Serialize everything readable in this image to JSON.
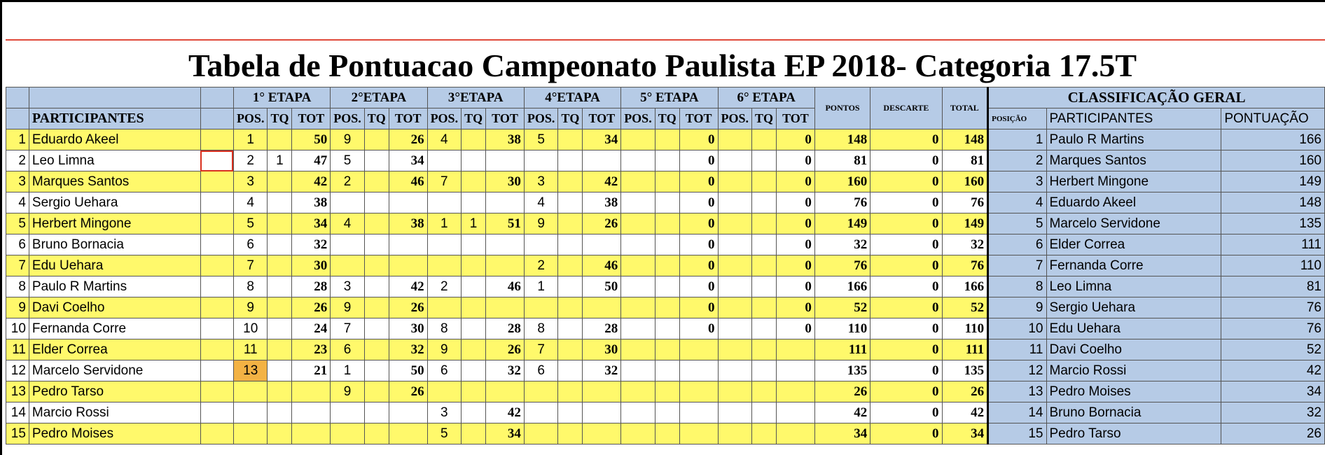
{
  "title": "Tabela de Pontuacao Campeonato Paulista EP 2018- Categoria 17.5T",
  "header": {
    "participants": "PARTICIPANTES",
    "stages": [
      "1° ETAPA",
      "2°ETAPA",
      "3°ETAPA",
      "4°ETAPA",
      "5° ETAPA",
      "6° ETAPA"
    ],
    "sub": [
      "POS.",
      "TQ",
      "TOT"
    ],
    "pontos": "PONTOS",
    "descarte": "DESCARTE",
    "total": "TOTAL",
    "classificacao": "CLASSIFICAÇÃO GERAL",
    "posicao": "POSIÇÃO",
    "participantes2": "PARTICIPANTES",
    "pontuacao": "PONTUAÇÃO"
  },
  "rows": [
    {
      "n": "1",
      "name": "Eduardo Akeel",
      "s": [
        [
          "1",
          "",
          "50"
        ],
        [
          "9",
          "",
          "26"
        ],
        [
          "4",
          "",
          "38"
        ],
        [
          "5",
          "",
          "34"
        ],
        [
          "",
          "",
          "0"
        ],
        [
          "",
          "",
          "0"
        ]
      ],
      "pontos": "148",
      "descarte": "0",
      "total": "148"
    },
    {
      "n": "2",
      "name": "Leo Limna",
      "s": [
        [
          "2",
          "1",
          "47"
        ],
        [
          "5",
          "",
          "34"
        ],
        [
          "",
          "",
          ""
        ],
        [
          "",
          "",
          ""
        ],
        [
          "",
          "",
          "0"
        ],
        [
          "",
          "",
          "0"
        ]
      ],
      "pontos": "81",
      "descarte": "0",
      "total": "81"
    },
    {
      "n": "3",
      "name": "Marques Santos",
      "s": [
        [
          "3",
          "",
          "42"
        ],
        [
          "2",
          "",
          "46"
        ],
        [
          "7",
          "",
          "30"
        ],
        [
          "3",
          "",
          "42"
        ],
        [
          "",
          "",
          "0"
        ],
        [
          "",
          "",
          "0"
        ]
      ],
      "pontos": "160",
      "descarte": "0",
      "total": "160"
    },
    {
      "n": "4",
      "name": "Sergio Uehara",
      "s": [
        [
          "4",
          "",
          "38"
        ],
        [
          "",
          "",
          ""
        ],
        [
          "",
          "",
          ""
        ],
        [
          "4",
          "",
          "38"
        ],
        [
          "",
          "",
          "0"
        ],
        [
          "",
          "",
          "0"
        ]
      ],
      "pontos": "76",
      "descarte": "0",
      "total": "76"
    },
    {
      "n": "5",
      "name": "Herbert Mingone",
      "s": [
        [
          "5",
          "",
          "34"
        ],
        [
          "4",
          "",
          "38"
        ],
        [
          "1",
          "1",
          "51"
        ],
        [
          "9",
          "",
          "26"
        ],
        [
          "",
          "",
          "0"
        ],
        [
          "",
          "",
          "0"
        ]
      ],
      "pontos": "149",
      "descarte": "0",
      "total": "149"
    },
    {
      "n": "6",
      "name": "Bruno Bornacia",
      "s": [
        [
          "6",
          "",
          "32"
        ],
        [
          "",
          "",
          ""
        ],
        [
          "",
          "",
          ""
        ],
        [
          "",
          "",
          ""
        ],
        [
          "",
          "",
          "0"
        ],
        [
          "",
          "",
          "0"
        ]
      ],
      "pontos": "32",
      "descarte": "0",
      "total": "32"
    },
    {
      "n": "7",
      "name": "Edu Uehara",
      "s": [
        [
          "7",
          "",
          "30"
        ],
        [
          "",
          "",
          ""
        ],
        [
          "",
          "",
          ""
        ],
        [
          "2",
          "",
          "46"
        ],
        [
          "",
          "",
          "0"
        ],
        [
          "",
          "",
          "0"
        ]
      ],
      "pontos": "76",
      "descarte": "0",
      "total": "76"
    },
    {
      "n": "8",
      "name": "Paulo R Martins",
      "s": [
        [
          "8",
          "",
          "28"
        ],
        [
          "3",
          "",
          "42"
        ],
        [
          "2",
          "",
          "46"
        ],
        [
          "1",
          "",
          "50"
        ],
        [
          "",
          "",
          "0"
        ],
        [
          "",
          "",
          "0"
        ]
      ],
      "pontos": "166",
      "descarte": "0",
      "total": "166"
    },
    {
      "n": "9",
      "name": "Davi Coelho",
      "s": [
        [
          "9",
          "",
          "26"
        ],
        [
          "9",
          "",
          "26"
        ],
        [
          "",
          "",
          ""
        ],
        [
          "",
          "",
          ""
        ],
        [
          "",
          "",
          "0"
        ],
        [
          "",
          "",
          "0"
        ]
      ],
      "pontos": "52",
      "descarte": "0",
      "total": "52"
    },
    {
      "n": "10",
      "name": "Fernanda Corre",
      "s": [
        [
          "10",
          "",
          "24"
        ],
        [
          "7",
          "",
          "30"
        ],
        [
          "8",
          "",
          "28"
        ],
        [
          "8",
          "",
          "28"
        ],
        [
          "",
          "",
          "0"
        ],
        [
          "",
          "",
          "0"
        ]
      ],
      "pontos": "110",
      "descarte": "0",
      "total": "110"
    },
    {
      "n": "11",
      "name": "Elder Correa",
      "s": [
        [
          "11",
          "",
          "23"
        ],
        [
          "6",
          "",
          "32"
        ],
        [
          "9",
          "",
          "26"
        ],
        [
          "7",
          "",
          "30"
        ],
        [
          "",
          "",
          ""
        ],
        [
          "",
          "",
          ""
        ]
      ],
      "pontos": "111",
      "descarte": "0",
      "total": "111"
    },
    {
      "n": "12",
      "name": "Marcelo Servidone",
      "s": [
        [
          "13",
          "",
          "21"
        ],
        [
          "1",
          "",
          "50"
        ],
        [
          "6",
          "",
          "32"
        ],
        [
          "6",
          "",
          "32"
        ],
        [
          "",
          "",
          ""
        ],
        [
          "",
          "",
          ""
        ]
      ],
      "pontos": "135",
      "descarte": "0",
      "total": "135"
    },
    {
      "n": "13",
      "name": "Pedro Tarso",
      "s": [
        [
          "",
          "",
          ""
        ],
        [
          "9",
          "",
          "26"
        ],
        [
          "",
          "",
          ""
        ],
        [
          "",
          "",
          ""
        ],
        [
          "",
          "",
          ""
        ],
        [
          "",
          "",
          ""
        ]
      ],
      "pontos": "26",
      "descarte": "0",
      "total": "26"
    },
    {
      "n": "14",
      "name": "Marcio Rossi",
      "s": [
        [
          "",
          "",
          ""
        ],
        [
          "",
          "",
          ""
        ],
        [
          "3",
          "",
          "42"
        ],
        [
          "",
          "",
          ""
        ],
        [
          "",
          "",
          ""
        ],
        [
          "",
          "",
          ""
        ]
      ],
      "pontos": "42",
      "descarte": "0",
      "total": "42"
    },
    {
      "n": "15",
      "name": "Pedro Moises",
      "s": [
        [
          "",
          "",
          ""
        ],
        [
          "",
          "",
          ""
        ],
        [
          "5",
          "",
          "34"
        ],
        [
          "",
          "",
          ""
        ],
        [
          "",
          "",
          ""
        ],
        [
          "",
          "",
          ""
        ]
      ],
      "pontos": "34",
      "descarte": "0",
      "total": "34"
    }
  ],
  "classification": [
    {
      "pos": "1",
      "name": "Paulo R Martins",
      "pts": "166"
    },
    {
      "pos": "2",
      "name": "Marques Santos",
      "pts": "160"
    },
    {
      "pos": "3",
      "name": "Herbert Mingone",
      "pts": "149"
    },
    {
      "pos": "4",
      "name": "Eduardo Akeel",
      "pts": "148"
    },
    {
      "pos": "5",
      "name": "Marcelo Servidone",
      "pts": "135"
    },
    {
      "pos": "6",
      "name": "Elder Correa",
      "pts": "111"
    },
    {
      "pos": "7",
      "name": "Fernanda Corre",
      "pts": "110"
    },
    {
      "pos": "8",
      "name": "Leo Limna",
      "pts": "81"
    },
    {
      "pos": "9",
      "name": "Sergio Uehara",
      "pts": "76"
    },
    {
      "pos": "10",
      "name": "Edu Uehara",
      "pts": "76"
    },
    {
      "pos": "11",
      "name": "Davi Coelho",
      "pts": "52"
    },
    {
      "pos": "12",
      "name": "Marcio Rossi",
      "pts": "42"
    },
    {
      "pos": "13",
      "name": "Pedro Moises",
      "pts": "34"
    },
    {
      "pos": "14",
      "name": "Bruno Bornacia",
      "pts": "32"
    },
    {
      "pos": "15",
      "name": "Pedro Tarso",
      "pts": "26"
    }
  ]
}
